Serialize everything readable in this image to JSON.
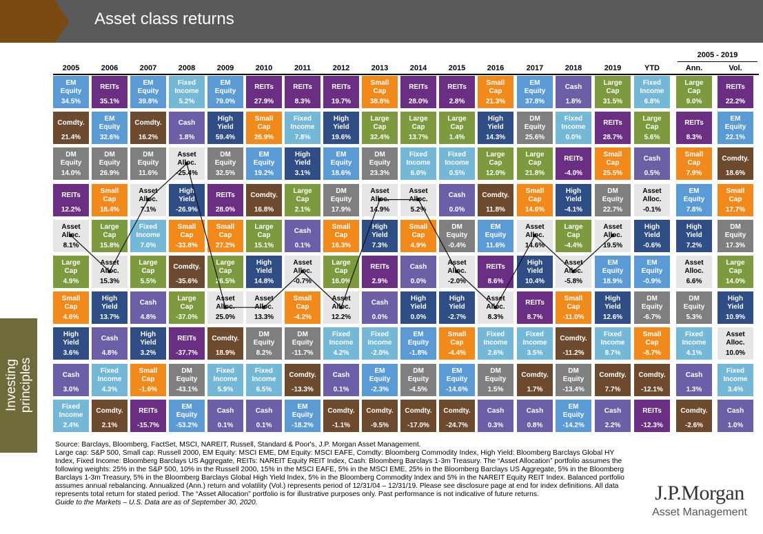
{
  "header": {
    "title": "Asset class returns"
  },
  "side_tab": {
    "label": "Investing\nprinciples"
  },
  "chart_data": {
    "type": "table",
    "annual_range_label": "2005 - 2019",
    "columns": [
      "2005",
      "2006",
      "2007",
      "2008",
      "2009",
      "2010",
      "2011",
      "2012",
      "2013",
      "2014",
      "2015",
      "2016",
      "2017",
      "2018",
      "2019",
      "YTD",
      "Ann.",
      "Vol."
    ],
    "asset_colors": {
      "EM Equity": "#5b9bd5",
      "REITs": "#6a2f83",
      "Fixed Income": "#74b8d8",
      "Small Cap": "#f28a1b",
      "Cash": "#6c5fa8",
      "Large Cap": "#7e9a3e",
      "Comdty.": "#6d4a2e",
      "High Yield": "#2f4e85",
      "DM Equity": "#7f7f7f",
      "Asset Alloc.": "#e6e6e6"
    },
    "cells": [
      [
        [
          "EM Equity",
          "34.5%"
        ],
        [
          "Comdty.",
          "21.4%"
        ],
        [
          "DM Equity",
          "14.0%"
        ],
        [
          "REITs",
          "12.2%"
        ],
        [
          "Asset Alloc.",
          "8.1%"
        ],
        [
          "Large Cap",
          "4.9%"
        ],
        [
          "Small Cap",
          "4.6%"
        ],
        [
          "High Yield",
          "3.6%"
        ],
        [
          "Cash",
          "3.0%"
        ],
        [
          "Fixed Income",
          "2.4%"
        ]
      ],
      [
        [
          "REITs",
          "35.1%"
        ],
        [
          "EM Equity",
          "32.6%"
        ],
        [
          "DM Equity",
          "26.9%"
        ],
        [
          "Small Cap",
          "18.4%"
        ],
        [
          "Large Cap",
          "15.8%"
        ],
        [
          "Asset Alloc.",
          "15.3%"
        ],
        [
          "High Yield",
          "13.7%"
        ],
        [
          "Cash",
          "4.8%"
        ],
        [
          "Fixed Income",
          "4.3%"
        ],
        [
          "Comdty.",
          "2.1%"
        ]
      ],
      [
        [
          "EM Equity",
          "39.8%"
        ],
        [
          "Comdty.",
          "16.2%"
        ],
        [
          "DM Equity",
          "11.6%"
        ],
        [
          "Asset Alloc.",
          "7.1%"
        ],
        [
          "Fixed Income",
          "7.0%"
        ],
        [
          "Large Cap",
          "5.5%"
        ],
        [
          "Cash",
          "4.8%"
        ],
        [
          "High Yield",
          "3.2%"
        ],
        [
          "Small Cap",
          "-1.6%"
        ],
        [
          "REITs",
          "-15.7%"
        ]
      ],
      [
        [
          "Fixed Income",
          "5.2%"
        ],
        [
          "Cash",
          "1.8%"
        ],
        [
          "Asset Alloc.",
          "-25.4%"
        ],
        [
          "High Yield",
          "-26.9%"
        ],
        [
          "Small Cap",
          "-33.8%"
        ],
        [
          "Comdty.",
          "-35.6%"
        ],
        [
          "Large Cap",
          "-37.0%"
        ],
        [
          "REITs",
          "-37.7%"
        ],
        [
          "DM Equity",
          "-43.1%"
        ],
        [
          "EM Equity",
          "-53.2%"
        ]
      ],
      [
        [
          "EM Equity",
          "79.0%"
        ],
        [
          "High Yield",
          "59.4%"
        ],
        [
          "DM Equity",
          "32.5%"
        ],
        [
          "REITs",
          "28.0%"
        ],
        [
          "Small Cap",
          "27.2%"
        ],
        [
          "Large Cap",
          "26.5%"
        ],
        [
          "Asset Alloc.",
          "25.0%"
        ],
        [
          "Comdty.",
          "18.9%"
        ],
        [
          "Fixed Income",
          "5.9%"
        ],
        [
          "Cash",
          "0.1%"
        ]
      ],
      [
        [
          "REITs",
          "27.9%"
        ],
        [
          "Small Cap",
          "26.9%"
        ],
        [
          "EM Equity",
          "19.2%"
        ],
        [
          "Comdty.",
          "16.8%"
        ],
        [
          "Large Cap",
          "15.1%"
        ],
        [
          "High Yield",
          "14.8%"
        ],
        [
          "Asset Alloc.",
          "13.3%"
        ],
        [
          "DM Equity",
          "8.2%"
        ],
        [
          "Fixed Income",
          "6.5%"
        ],
        [
          "Cash",
          "0.1%"
        ]
      ],
      [
        [
          "REITs",
          "8.3%"
        ],
        [
          "Fixed Income",
          "7.8%"
        ],
        [
          "High Yield",
          "3.1%"
        ],
        [
          "Large Cap",
          "2.1%"
        ],
        [
          "Cash",
          "0.1%"
        ],
        [
          "Asset Alloc.",
          "-0.7%"
        ],
        [
          "Small Cap",
          "-4.2%"
        ],
        [
          "DM Equity",
          "-11.7%"
        ],
        [
          "Comdty.",
          "-13.3%"
        ],
        [
          "EM Equity",
          "-18.2%"
        ]
      ],
      [
        [
          "REITs",
          "19.7%"
        ],
        [
          "High Yield",
          "19.6%"
        ],
        [
          "EM Equity",
          "18.6%"
        ],
        [
          "DM Equity",
          "17.9%"
        ],
        [
          "Small Cap",
          "16.3%"
        ],
        [
          "Large Cap",
          "16.0%"
        ],
        [
          "Asset Alloc.",
          "12.2%"
        ],
        [
          "Fixed Income",
          "4.2%"
        ],
        [
          "Cash",
          "0.1%"
        ],
        [
          "Comdty.",
          "-1.1%"
        ]
      ],
      [
        [
          "Small Cap",
          "38.8%"
        ],
        [
          "Large Cap",
          "32.4%"
        ],
        [
          "DM Equity",
          "23.3%"
        ],
        [
          "Asset Alloc.",
          "14.9%"
        ],
        [
          "High Yield",
          "7.3%"
        ],
        [
          "REITs",
          "2.9%"
        ],
        [
          "Cash",
          "0.0%"
        ],
        [
          "Fixed Income",
          "-2.0%"
        ],
        [
          "EM Equity",
          "-2.3%"
        ],
        [
          "Comdty.",
          "-9.5%"
        ]
      ],
      [
        [
          "REITs",
          "28.0%"
        ],
        [
          "Large Cap",
          "13.7%"
        ],
        [
          "Fixed Income",
          "6.0%"
        ],
        [
          "Asset Alloc.",
          "5.2%"
        ],
        [
          "Small Cap",
          "4.9%"
        ],
        [
          "Cash",
          "0.0%"
        ],
        [
          "High Yield",
          "0.0%"
        ],
        [
          "EM Equity",
          "-1.8%"
        ],
        [
          "DM Equity",
          "-4.5%"
        ],
        [
          "Comdty.",
          "-17.0%"
        ]
      ],
      [
        [
          "REITs",
          "2.8%"
        ],
        [
          "Large Cap",
          "1.4%"
        ],
        [
          "Fixed Income",
          "0.5%"
        ],
        [
          "Cash",
          "0.0%"
        ],
        [
          "DM Equity",
          "-0.4%"
        ],
        [
          "Asset Alloc.",
          "-2.0%"
        ],
        [
          "High Yield",
          "-2.7%"
        ],
        [
          "Small Cap",
          "-4.4%"
        ],
        [
          "EM Equity",
          "-14.6%"
        ],
        [
          "Comdty.",
          "-24.7%"
        ]
      ],
      [
        [
          "Small Cap",
          "21.3%"
        ],
        [
          "High Yield",
          "14.3%"
        ],
        [
          "Large Cap",
          "12.0%"
        ],
        [
          "Comdty.",
          "11.8%"
        ],
        [
          "EM Equity",
          "11.6%"
        ],
        [
          "REITs",
          "8.6%"
        ],
        [
          "Asset Alloc.",
          "8.3%"
        ],
        [
          "Fixed Income",
          "2.6%"
        ],
        [
          "DM Equity",
          "1.5%"
        ],
        [
          "Cash",
          "0.3%"
        ]
      ],
      [
        [
          "EM Equity",
          "37.8%"
        ],
        [
          "DM Equity",
          "25.6%"
        ],
        [
          "Large Cap",
          "21.8%"
        ],
        [
          "Small Cap",
          "14.6%"
        ],
        [
          "Asset Alloc.",
          "14.6%"
        ],
        [
          "High Yield",
          "10.4%"
        ],
        [
          "REITs",
          "8.7%"
        ],
        [
          "Fixed Income",
          "3.5%"
        ],
        [
          "Comdty.",
          "1.7%"
        ],
        [
          "Cash",
          "0.8%"
        ]
      ],
      [
        [
          "Cash",
          "1.8%"
        ],
        [
          "Fixed Income",
          "0.0%"
        ],
        [
          "REITs",
          "-4.0%"
        ],
        [
          "High Yield",
          "-4.1%"
        ],
        [
          "Large Cap",
          "-4.4%"
        ],
        [
          "Asset Alloc.",
          "-5.8%"
        ],
        [
          "Small Cap",
          "-11.0%"
        ],
        [
          "Comdty.",
          "-11.2%"
        ],
        [
          "DM Equity",
          "-13.4%"
        ],
        [
          "EM Equity",
          "-14.2%"
        ]
      ],
      [
        [
          "Large Cap",
          "31.5%"
        ],
        [
          "REITs",
          "28.7%"
        ],
        [
          "Small Cap",
          "25.5%"
        ],
        [
          "DM Equity",
          "22.7%"
        ],
        [
          "Asset Alloc.",
          "19.5%"
        ],
        [
          "EM Equity",
          "18.9%"
        ],
        [
          "High Yield",
          "12.6%"
        ],
        [
          "Fixed Income",
          "8.7%"
        ],
        [
          "Comdty.",
          "7.7%"
        ],
        [
          "Cash",
          "2.2%"
        ]
      ],
      [
        [
          "Fixed Income",
          "6.8%"
        ],
        [
          "Large Cap",
          "5.6%"
        ],
        [
          "Cash",
          "0.5%"
        ],
        [
          "Asset Alloc.",
          "-0.1%"
        ],
        [
          "High Yield",
          "-0.6%"
        ],
        [
          "EM Equity",
          "-0.9%"
        ],
        [
          "DM Equity",
          "-6.7%"
        ],
        [
          "Small Cap",
          "-8.7%"
        ],
        [
          "Comdty.",
          "-12.1%"
        ],
        [
          "REITs",
          "-12.3%"
        ]
      ],
      [
        [
          "Large Cap",
          "9.0%"
        ],
        [
          "REITs",
          "8.3%"
        ],
        [
          "Small Cap",
          "7.9%"
        ],
        [
          "EM Equity",
          "7.8%"
        ],
        [
          "High Yield",
          "7.2%"
        ],
        [
          "Asset Alloc.",
          "6.6%"
        ],
        [
          "DM Equity",
          "5.3%"
        ],
        [
          "Fixed Income",
          "4.1%"
        ],
        [
          "Cash",
          "1.3%"
        ],
        [
          "Comdty.",
          "-2.6%"
        ]
      ],
      [
        [
          "REITs",
          "22.2%"
        ],
        [
          "EM Equity",
          "22.1%"
        ],
        [
          "Comdty.",
          "18.6%"
        ],
        [
          "Small Cap",
          "17.7%"
        ],
        [
          "DM Equity",
          "17.3%"
        ],
        [
          "Large Cap",
          "14.0%"
        ],
        [
          "High Yield",
          "10.9%"
        ],
        [
          "Asset Alloc.",
          "10.0%"
        ],
        [
          "Fixed Income",
          "3.4%"
        ],
        [
          "Cash",
          "1.0%"
        ]
      ]
    ],
    "asset_allocation_line": {
      "series": "Asset Alloc.",
      "columns": 15
    }
  },
  "notes": {
    "source": "Source: Barclays, Bloomberg, FactSet, MSCI, NAREIT, Russell, Standard & Poor's, J.P. Morgan Asset Management.",
    "definitions": "Large cap: S&P 500, Small cap: Russell 2000, EM Equity: MSCI EME, DM Equity: MSCI EAFE, Comdty: Bloomberg Commodity Index, High Yield: Bloomberg Barclays Global HY Index, Fixed Income: Bloomberg Barclays US Aggregate, REITs: NAREIT Equity REIT Index, Cash: Bloomberg Barclays 1-3m Treasury. The “Asset Allocation” portfolio assumes the following weights: 25% in the S&P 500, 10% in the Russell 2000, 15% in the MSCI EAFE, 5% in the MSCI EME, 25% in the Bloomberg Barclays US Aggregate, 5% in the Bloomberg Barclays 1-3m Treasury, 5% in the Bloomberg Barclays Global High Yield Index, 5% in the Bloomberg Commodity Index and 5% in the NAREIT Equity REIT Index. Balanced portfolio assumes annual rebalancing. Annualized (Ann.) return and volatility (Vol.) represents period of 12/31/04 – 12/31/19. Please see disclosure page at end for index definitions. All data represents total return for stated period. The “Asset Allocation” portfolio is for illustrative purposes only. Past performance is not indicative of future returns.",
    "guide": "Guide to the Markets – U.S. Data are as of September 30, 2020."
  },
  "logo": {
    "line1": "J.P.Morgan",
    "line2": "Asset Management"
  }
}
